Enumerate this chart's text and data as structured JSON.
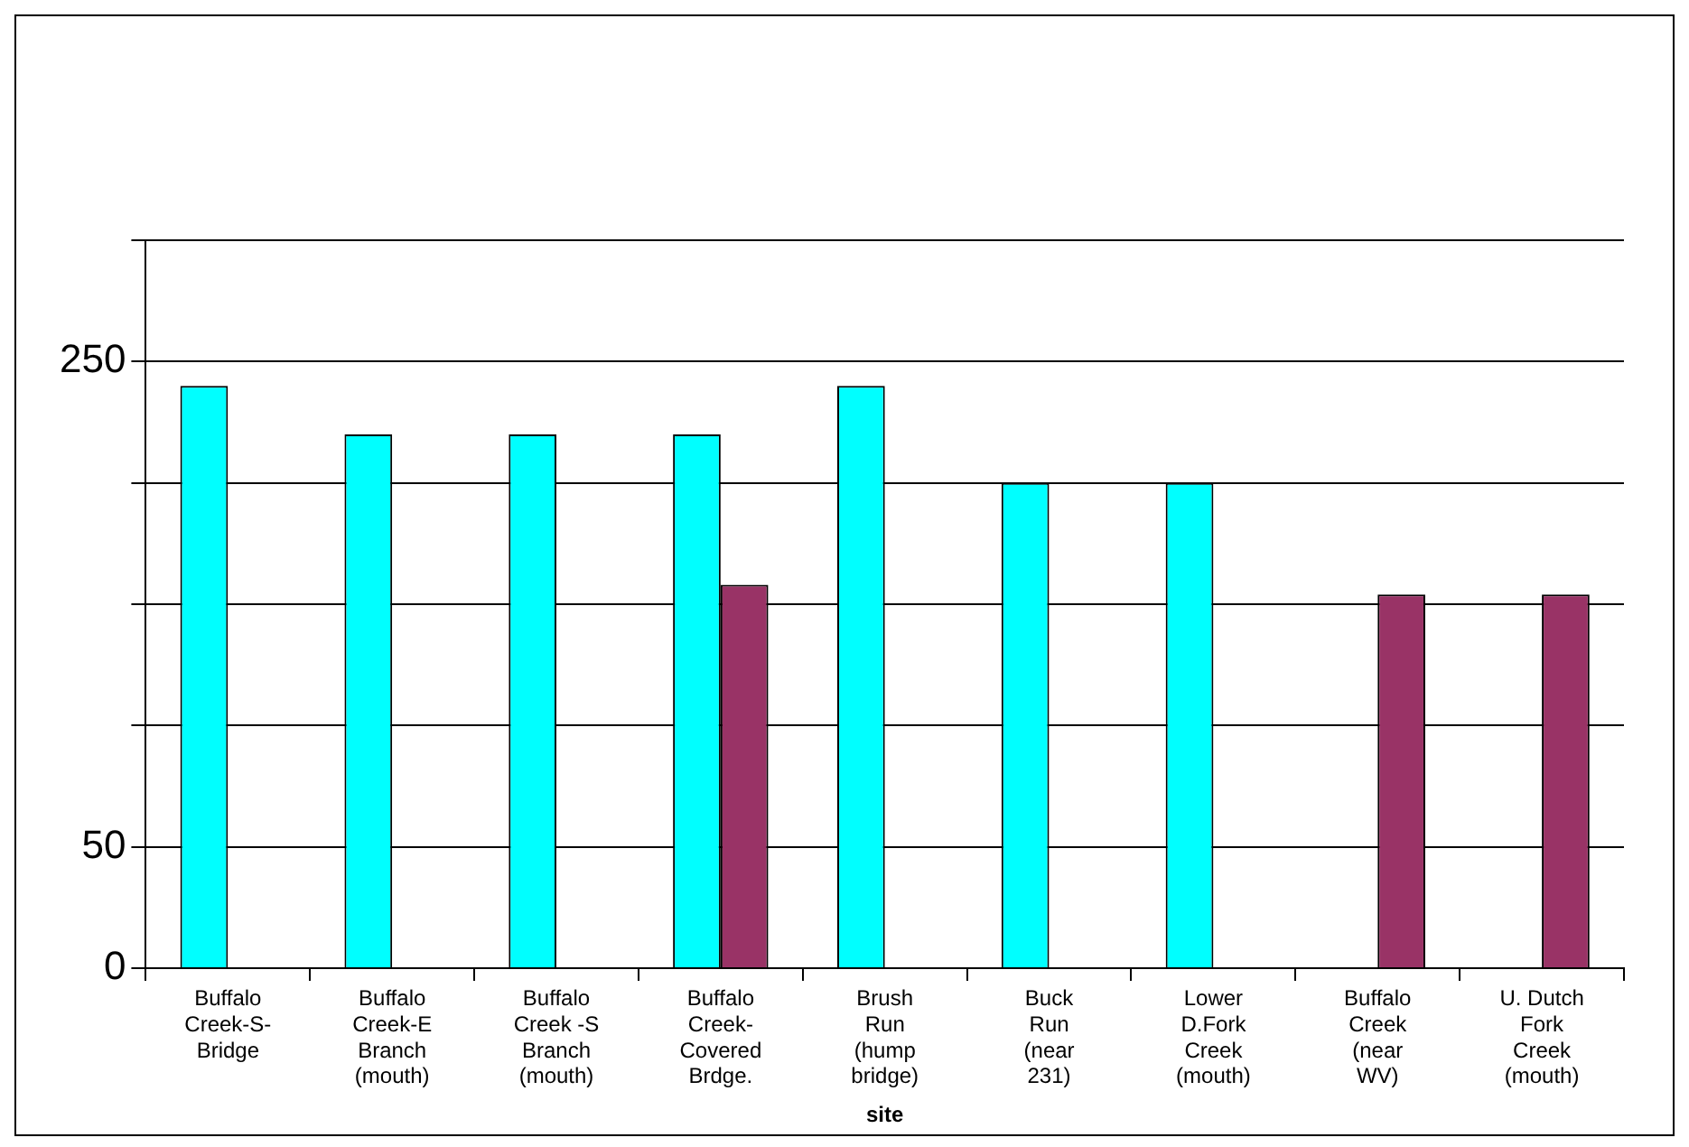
{
  "chart_data": {
    "type": "bar",
    "xlabel": "site",
    "categories": [
      "Buffalo\nCreek-S-\nBridge",
      "Buffalo\nCreek-E\nBranch\n(mouth)",
      "Buffalo\nCreek -S\nBranch\n(mouth)",
      "Buffalo\nCreek-\nCovered\nBrdge.",
      "Brush\nRun\n(hump\nbridge)",
      "Buck\nRun\n(near\n231)",
      "Lower\nD.Fork\nCreek\n(mouth)",
      "Buffalo\nCreek\n(near\nWV)",
      "U. Dutch\nFork\nCreek\n(mouth)"
    ],
    "series": [
      {
        "color": "#00ffff",
        "values": [
          240,
          220,
          220,
          220,
          240,
          200,
          200,
          null,
          null
        ]
      },
      {
        "color": "#993366",
        "values": [
          null,
          null,
          null,
          158,
          null,
          null,
          null,
          154,
          154
        ]
      }
    ],
    "ylim": [
      0,
      300
    ],
    "yticks": [
      0,
      50,
      {
        "value": 100,
        "label": null
      },
      {
        "value": 150,
        "label": null
      },
      {
        "value": 200,
        "label": null
      },
      250,
      {
        "value": 300,
        "label": null
      }
    ],
    "grid": "y",
    "legend": false
  }
}
